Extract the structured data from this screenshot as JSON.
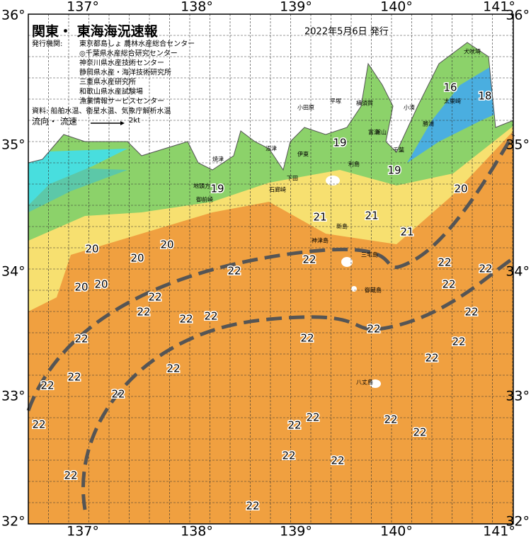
{
  "header": {
    "title": "関東・ 東海海況速報",
    "date": "2022年5月6日 発行",
    "issuer_label": "発行機関:",
    "issuers": [
      "東京都島しょ 農林水産総合センター",
      "◎千葉県水産総合研究センター",
      "神奈川県水産技術センター",
      "静岡県水産・海洋技術研究所",
      "三重県水産研究所",
      "和歌山県水産試験場",
      "漁業情報サービスセンター"
    ],
    "source": "資料: 船舶水温、衛星水温、気象庁解析水温",
    "legend_label": "流向・ 流速",
    "legend_speed": "2kt"
  },
  "map": {
    "longitude_labels": [
      "137°",
      "138°",
      "139°",
      "140°",
      "141°"
    ],
    "latitude_labels": [
      "36°",
      "35°",
      "34°",
      "33°",
      "32°"
    ],
    "temperature_labels": [
      19,
      19,
      19,
      16,
      18,
      20,
      21,
      21,
      21,
      20,
      20,
      20,
      20,
      20,
      22,
      22,
      22,
      22,
      22,
      22,
      22,
      22,
      22,
      22,
      22,
      22,
      22,
      22,
      22,
      22,
      22,
      22,
      22,
      22,
      22,
      22,
      22,
      22,
      22,
      22,
      22,
      22
    ],
    "place_names": [
      "小田原",
      "平塚",
      "横須賀",
      "館山",
      "千葉",
      "富津",
      "勝浦",
      "太東崎",
      "犬吠埼",
      "沼津",
      "伊東",
      "焼津",
      "御前崎",
      "地頭方",
      "下田",
      "石廊崎",
      "利島",
      "新島",
      "神津島",
      "三宅島",
      "御蔵島",
      "八丈島",
      "小湊"
    ]
  }
}
